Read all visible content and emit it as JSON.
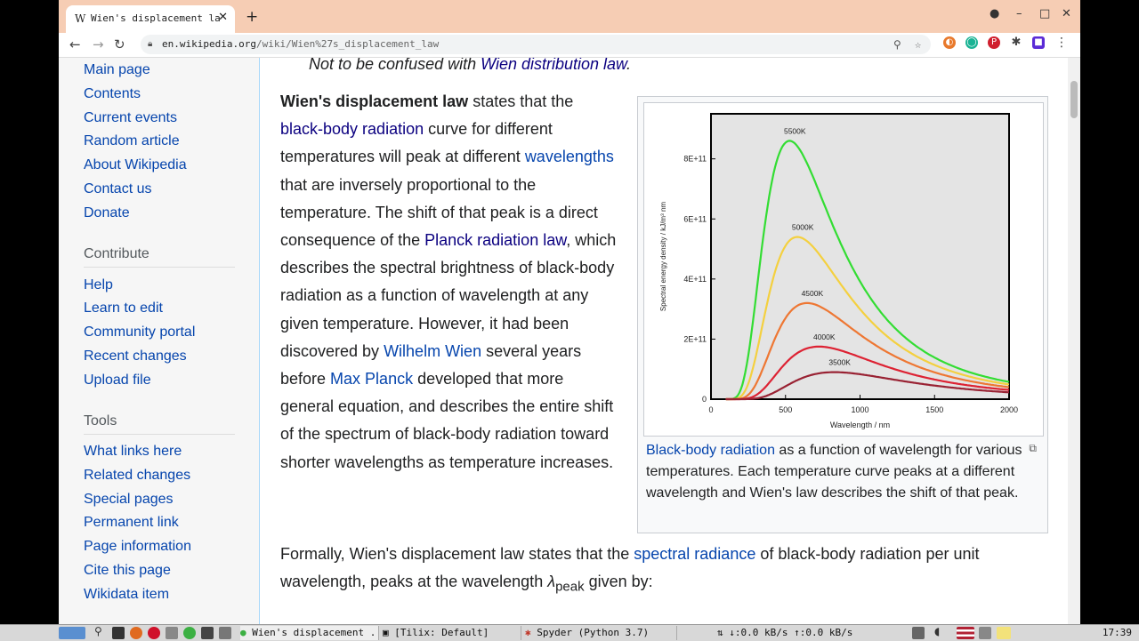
{
  "browser": {
    "tab_title": "Wien's displacement la",
    "tab_close": "✕",
    "new_tab": "+",
    "url_host": "en.wikipedia.org",
    "url_path": "/wiki/Wien%27s_displacement_law",
    "window_controls": [
      "–",
      "□",
      "✕"
    ]
  },
  "sidebar": {
    "nav": [
      "Main page",
      "Contents",
      "Current events",
      "Random article",
      "About Wikipedia",
      "Contact us",
      "Donate"
    ],
    "contribute_heading": "Contribute",
    "contribute": [
      "Help",
      "Learn to edit",
      "Community portal",
      "Recent changes",
      "Upload file"
    ],
    "tools_heading": "Tools",
    "tools": [
      "What links here",
      "Related changes",
      "Special pages",
      "Permanent link",
      "Page information",
      "Cite this page",
      "Wikidata item"
    ]
  },
  "article": {
    "hatnote_prefix": "Not to be confused with ",
    "hatnote_link": "Wien distribution law",
    "hatnote_suffix": ".",
    "p1": {
      "bold": "Wien's displacement law",
      "t1": " states that the ",
      "l1": "black-body radiation",
      "t2": " curve for different temperatures will peak at different ",
      "l2": "wavelengths",
      "t3": " that are inversely proportional to the temperature. The shift of that peak is a direct consequence of the ",
      "l3": "Planck radiation law",
      "t4": ", which describes the spectral brightness of black-body radiation as a function of wavelength at any given temperature. However, it had been discovered by ",
      "l4": "Wilhelm Wien",
      "t5": " several years before ",
      "l5": "Max Planck",
      "t6": " developed that more general equation, and describes the entire shift of the spectrum of black-body radiation toward shorter wavelengths as temperature increases."
    },
    "p2": {
      "t1": "Formally, Wien's displacement law states that the ",
      "l1": "spectral radiance",
      "t2": " of black-body radiation per unit wavelength, peaks at the wavelength ",
      "lambda": "λ",
      "sub": "peak",
      "t3": " given by:"
    },
    "caption": {
      "link": "Black-body radiation",
      "text": " as a function of wavelength for various temperatures. Each temperature curve peaks at a different wavelength and Wien's law describes the shift of that peak."
    }
  },
  "chart_data": {
    "type": "line",
    "xlabel": "Wavelength / nm",
    "ylabel": "Spectral energy density / kJ/m³ nm",
    "xlim": [
      0,
      2000
    ],
    "ylim": [
      0,
      950000000000
    ],
    "xticks": [
      "0",
      "500",
      "1000",
      "1500",
      "2000"
    ],
    "yticks": [
      "0",
      "2E+11",
      "4E+11",
      "6E+11",
      "8E+11"
    ],
    "series": [
      {
        "name": "5500K",
        "color": "#33dd33",
        "temperature": 5500
      },
      {
        "name": "5000K",
        "color": "#f4d03f",
        "temperature": 5000
      },
      {
        "name": "4500K",
        "color": "#ee7733",
        "temperature": 4500
      },
      {
        "name": "4000K",
        "color": "#dd2233",
        "temperature": 4000
      },
      {
        "name": "3500K",
        "color": "#992233",
        "temperature": 3500
      }
    ],
    "peaks_nm": [
      527,
      580,
      644,
      724,
      828
    ],
    "peak_values": [
      860000000000,
      540000000000,
      320000000000,
      175000000000,
      90000000000
    ],
    "background": "#e4e4e4",
    "grid": false
  },
  "taskbar": {
    "tasks": [
      "Wien's displacement ...",
      "[Tilix: Default]",
      "Spyder (Python 3.7)"
    ],
    "net": "↓:0.0 kB/s ↑:0.0 kB/s",
    "clock": "17:39"
  }
}
